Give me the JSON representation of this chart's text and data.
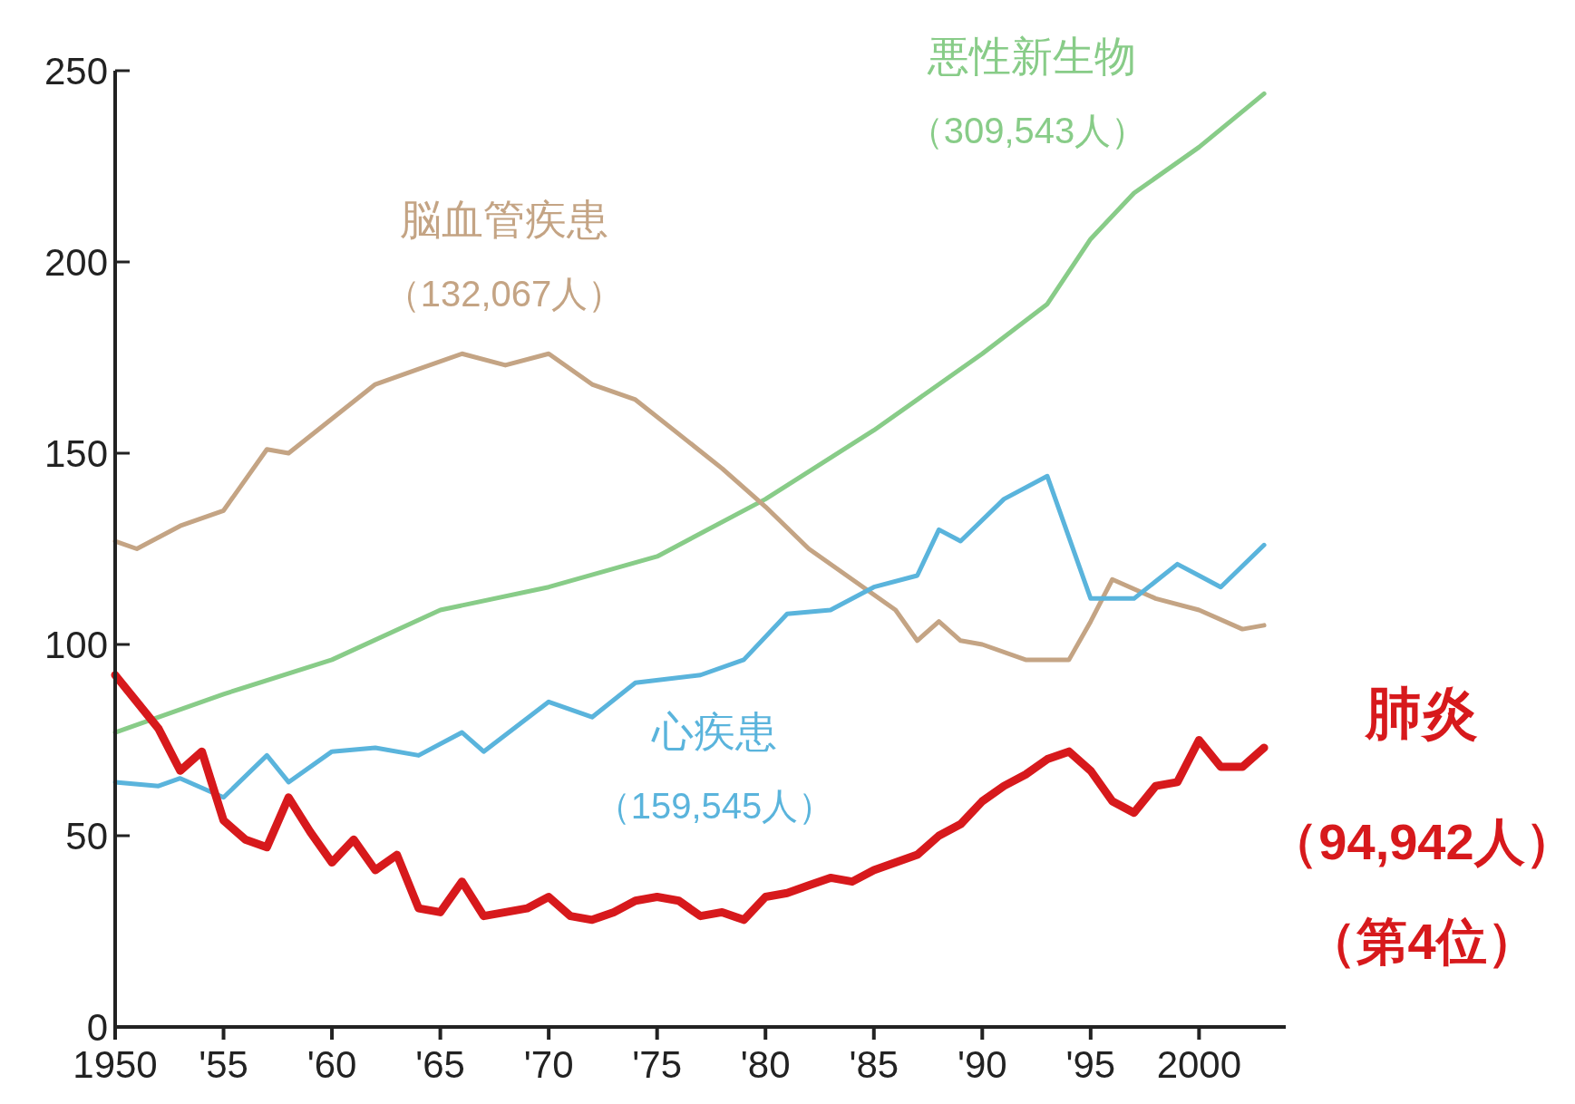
{
  "chart_data": {
    "type": "line",
    "xlim": [
      1950,
      2004
    ],
    "ylim": [
      0,
      250
    ],
    "xticks": [
      1950,
      {
        "value": 1955,
        "label": "'55"
      },
      {
        "value": 1960,
        "label": "'60"
      },
      {
        "value": 1965,
        "label": "'65"
      },
      {
        "value": 1970,
        "label": "'70"
      },
      {
        "value": 1975,
        "label": "'75"
      },
      {
        "value": 1980,
        "label": "'80"
      },
      {
        "value": 1985,
        "label": "'85"
      },
      {
        "value": 1990,
        "label": "'90"
      },
      {
        "value": 1995,
        "label": "'95"
      },
      2000
    ],
    "yticks": [
      0,
      50,
      100,
      150,
      200,
      250
    ],
    "grid": false,
    "marker": "none",
    "line_style": "solid",
    "annotations": [
      "（309,543人）",
      "（132,067人）",
      "（159,545人）",
      "（94,942人）",
      "（第4位）"
    ],
    "series": [
      {
        "name": "悪性新生物",
        "color": "#88cc88",
        "x": [
          1950,
          1955,
          1960,
          1965,
          1970,
          1975,
          1980,
          1985,
          1990,
          1993,
          1995,
          1997,
          2000,
          2003
        ],
        "values": [
          77,
          87,
          96,
          109,
          115,
          123,
          138,
          156,
          176,
          189,
          206,
          218,
          230,
          244
        ]
      },
      {
        "name": "脳血管疾患",
        "color": "#c4a484",
        "x": [
          1950,
          1951,
          1953,
          1955,
          1957,
          1958,
          1960,
          1962,
          1964,
          1966,
          1968,
          1970,
          1972,
          1974,
          1976,
          1978,
          1980,
          1982,
          1984,
          1986,
          1987,
          1988,
          1989,
          1990,
          1992,
          1994,
          1995,
          1996,
          1998,
          2000,
          2002,
          2003
        ],
        "values": [
          127,
          125,
          131,
          135,
          151,
          150,
          159,
          168,
          172,
          176,
          173,
          176,
          168,
          164,
          155,
          146,
          136,
          125,
          117,
          109,
          101,
          106,
          101,
          100,
          96,
          96,
          106,
          117,
          112,
          109,
          104,
          105
        ]
      },
      {
        "name": "心疾患",
        "color": "#5ab4dc",
        "x": [
          1950,
          1952,
          1953,
          1955,
          1957,
          1958,
          1960,
          1962,
          1964,
          1966,
          1967,
          1970,
          1972,
          1974,
          1977,
          1979,
          1981,
          1983,
          1985,
          1987,
          1988,
          1989,
          1991,
          1993,
          1995,
          1997,
          1999,
          2000,
          2001,
          2003
        ],
        "values": [
          64,
          63,
          65,
          60,
          71,
          64,
          72,
          73,
          71,
          77,
          72,
          85,
          81,
          90,
          92,
          96,
          108,
          109,
          115,
          118,
          130,
          127,
          138,
          144,
          112,
          112,
          121,
          118,
          115,
          126
        ]
      },
      {
        "name": "肺炎",
        "color": "#d7191c",
        "x": [
          1950,
          1952,
          1953,
          1954,
          1955,
          1956,
          1957,
          1958,
          1959,
          1960,
          1961,
          1962,
          1963,
          1964,
          1965,
          1966,
          1967,
          1968,
          1969,
          1970,
          1971,
          1972,
          1973,
          1974,
          1975,
          1976,
          1977,
          1978,
          1979,
          1980,
          1981,
          1982,
          1983,
          1984,
          1985,
          1986,
          1987,
          1988,
          1989,
          1990,
          1991,
          1992,
          1993,
          1994,
          1995,
          1996,
          1997,
          1998,
          1999,
          2000,
          2001,
          2002,
          2003
        ],
        "values": [
          92,
          78,
          67,
          72,
          54,
          49,
          47,
          60,
          51,
          43,
          49,
          41,
          45,
          31,
          30,
          38,
          29,
          30,
          31,
          34,
          29,
          28,
          30,
          33,
          34,
          33,
          29,
          30,
          28,
          34,
          35,
          37,
          39,
          38,
          41,
          43,
          45,
          50,
          53,
          59,
          63,
          66,
          70,
          72,
          67,
          59,
          56,
          63,
          64,
          75,
          68,
          68,
          73
        ]
      }
    ]
  }
}
